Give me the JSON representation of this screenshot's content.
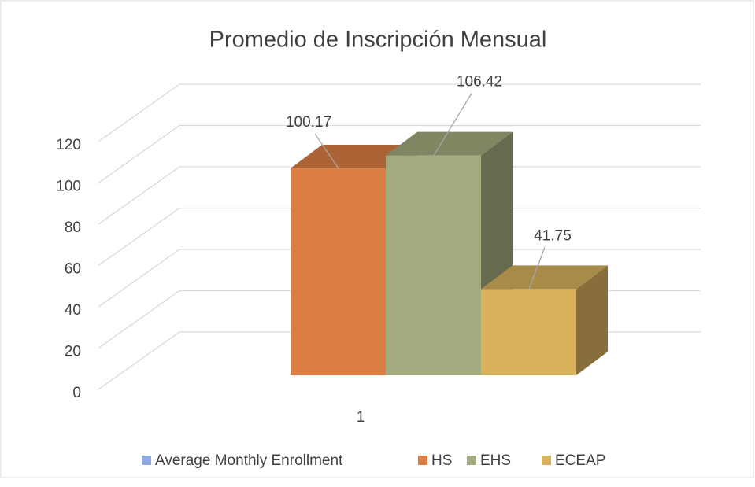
{
  "chart_data": {
    "type": "bar3d",
    "title": "Promedio de Inscripción Mensual",
    "categories": [
      "1"
    ],
    "series": [
      {
        "name": "Average Monthly Enrollment",
        "color": "#8faadc",
        "values": [
          null
        ]
      },
      {
        "name": "HS",
        "color": "#dd7f45",
        "values": [
          100.17
        ]
      },
      {
        "name": "EHS",
        "color": "#a4ab7e",
        "values": [
          106.42
        ]
      },
      {
        "name": "ECEAP",
        "color": "#d9b25e",
        "values": [
          41.75
        ]
      }
    ],
    "ylim": [
      0,
      120
    ],
    "yticks": [
      0,
      20,
      40,
      60,
      80,
      100,
      120
    ],
    "grid": true,
    "legend": "bottom"
  }
}
